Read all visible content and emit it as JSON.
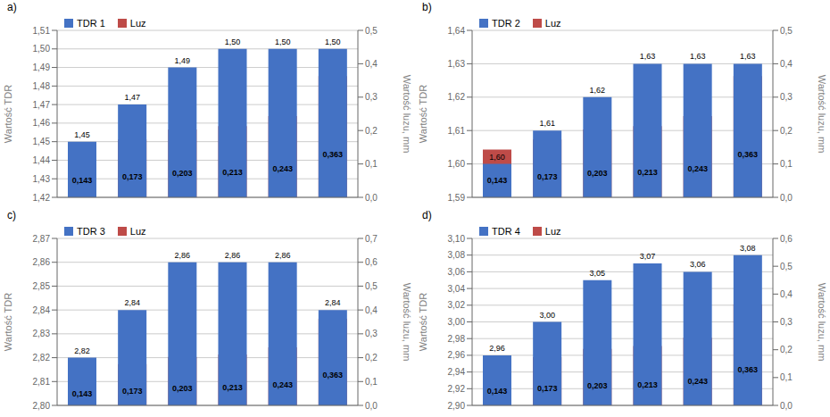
{
  "chart_data": [
    {
      "type": "bar",
      "title": "a)",
      "categories": [
        null,
        null,
        null,
        null,
        null,
        null
      ],
      "y_label": "Wartość TDR",
      "y2_label": "Wartość luzu, mm",
      "ylim": [
        1.42,
        1.51
      ],
      "yticks": [
        {
          "value": 1.42,
          "label": "1,42"
        },
        {
          "value": 1.43,
          "label": "1,43"
        },
        {
          "value": 1.44,
          "label": "1,44"
        },
        {
          "value": 1.45,
          "label": "1,45"
        },
        {
          "value": 1.46,
          "label": "1,46"
        },
        {
          "value": 1.47,
          "label": "1,47"
        },
        {
          "value": 1.48,
          "label": "1,48"
        },
        {
          "value": 1.49,
          "label": "1,49"
        },
        {
          "value": 1.5,
          "label": "1,50"
        },
        {
          "value": 1.51,
          "label": "1,51"
        }
      ],
      "y2lim": [
        0,
        0.5
      ],
      "y2ticks": [
        {
          "value": 0,
          "label": "0,0"
        },
        {
          "value": 0.1,
          "label": "0,1"
        },
        {
          "value": 0.2,
          "label": "0,2"
        },
        {
          "value": 0.3,
          "label": "0,3"
        },
        {
          "value": 0.4,
          "label": "0,4"
        },
        {
          "value": 0.5,
          "label": "0,5"
        }
      ],
      "grid": true,
      "legend": "upper left",
      "data_labels": true,
      "tick_labels": "y",
      "series": [
        {
          "name": "TDR 1",
          "color": "#4472C4",
          "values": [
            1.45,
            1.47,
            1.49,
            1.5,
            1.5,
            1.5
          ],
          "value_labels": [
            "1,45",
            "1,47",
            "1,49",
            "1,50",
            "1,50",
            "1,50"
          ]
        },
        {
          "name": "Luz",
          "color": "#BE4B48",
          "axis": "y2",
          "values": [
            0.143,
            0.173,
            0.203,
            0.213,
            0.243,
            0.363
          ],
          "value_labels": [
            "0,143",
            "0,173",
            "0,203",
            "0,213",
            "0,243",
            "0,363"
          ]
        }
      ]
    },
    {
      "type": "bar",
      "title": "b)",
      "categories": [
        null,
        null,
        null,
        null,
        null,
        null
      ],
      "y_label": "Wartość TDR",
      "y2_label": "Wartość luzu, mm",
      "ylim": [
        1.59,
        1.64
      ],
      "yticks": [
        {
          "value": 1.59,
          "label": "1,59"
        },
        {
          "value": 1.6,
          "label": "1,60"
        },
        {
          "value": 1.61,
          "label": "1,61"
        },
        {
          "value": 1.62,
          "label": "1,62"
        },
        {
          "value": 1.63,
          "label": "1,63"
        },
        {
          "value": 1.64,
          "label": "1,64"
        }
      ],
      "y2lim": [
        0,
        0.5
      ],
      "y2ticks": [
        {
          "value": 0,
          "label": "0,0"
        },
        {
          "value": 0.1,
          "label": "0,1"
        },
        {
          "value": 0.2,
          "label": "0,2"
        },
        {
          "value": 0.3,
          "label": "0,3"
        },
        {
          "value": 0.4,
          "label": "0,4"
        },
        {
          "value": 0.5,
          "label": "0,5"
        }
      ],
      "grid": true,
      "legend": "upper left",
      "data_labels": true,
      "tick_labels": "y",
      "series": [
        {
          "name": "TDR 2",
          "color": "#4472C4",
          "values": [
            1.6,
            1.61,
            1.62,
            1.63,
            1.63,
            1.63
          ],
          "value_labels": [
            "1,60",
            "1,61",
            "1,62",
            "1,63",
            "1,63",
            "1,63"
          ]
        },
        {
          "name": "Luz",
          "color": "#BE4B48",
          "axis": "y2",
          "values": [
            0.143,
            0.173,
            0.203,
            0.213,
            0.243,
            0.363
          ],
          "value_labels": [
            "0,143",
            "0,173",
            "0,203",
            "0,213",
            "0,243",
            "0,363"
          ]
        }
      ]
    },
    {
      "type": "bar",
      "title": "c)",
      "categories": [
        null,
        null,
        null,
        null,
        null,
        null
      ],
      "y_label": "Wartość TDR",
      "y2_label": "Wartość luzu, mm",
      "ylim": [
        2.8,
        2.87
      ],
      "yticks": [
        {
          "value": 2.8,
          "label": "2,80"
        },
        {
          "value": 2.81,
          "label": "2,81"
        },
        {
          "value": 2.82,
          "label": "2,82"
        },
        {
          "value": 2.83,
          "label": "2,83"
        },
        {
          "value": 2.84,
          "label": "2,84"
        },
        {
          "value": 2.85,
          "label": "2,85"
        },
        {
          "value": 2.86,
          "label": "2,86"
        },
        {
          "value": 2.87,
          "label": "2,87"
        }
      ],
      "y2lim": [
        0,
        0.7
      ],
      "y2ticks": [
        {
          "value": 0,
          "label": "0,0"
        },
        {
          "value": 0.1,
          "label": "0,1"
        },
        {
          "value": 0.2,
          "label": "0,2"
        },
        {
          "value": 0.3,
          "label": "0,3"
        },
        {
          "value": 0.4,
          "label": "0,4"
        },
        {
          "value": 0.5,
          "label": "0,5"
        },
        {
          "value": 0.6,
          "label": "0,6"
        },
        {
          "value": 0.7,
          "label": "0,7"
        }
      ],
      "grid": true,
      "legend": "upper left",
      "data_labels": true,
      "tick_labels": "y",
      "series": [
        {
          "name": "TDR 3",
          "color": "#4472C4",
          "values": [
            2.82,
            2.84,
            2.86,
            2.86,
            2.86,
            2.84
          ],
          "value_labels": [
            "2,82",
            "2,84",
            "2,86",
            "2,86",
            "2,86",
            "2,84"
          ]
        },
        {
          "name": "Luz",
          "color": "#BE4B48",
          "axis": "y2",
          "values": [
            0.143,
            0.173,
            0.203,
            0.213,
            0.243,
            0.363
          ],
          "value_labels": [
            "0,143",
            "0,173",
            "0,203",
            "0,213",
            "0,243",
            "0,363"
          ]
        }
      ]
    },
    {
      "type": "bar",
      "title": "d)",
      "categories": [
        null,
        null,
        null,
        null,
        null,
        null
      ],
      "y_label": "Wartość TDR",
      "y2_label": "Wartość luzu, mm",
      "ylim": [
        2.9,
        3.1
      ],
      "yticks": [
        {
          "value": 2.9,
          "label": "2,90"
        },
        {
          "value": 2.92,
          "label": "2,92"
        },
        {
          "value": 2.94,
          "label": "2,94"
        },
        {
          "value": 2.96,
          "label": "2,96"
        },
        {
          "value": 2.98,
          "label": "2,98"
        },
        {
          "value": 3.0,
          "label": "3,00"
        },
        {
          "value": 3.02,
          "label": "3,02"
        },
        {
          "value": 3.04,
          "label": "3,04"
        },
        {
          "value": 3.06,
          "label": "3,06"
        },
        {
          "value": 3.08,
          "label": "3,08"
        },
        {
          "value": 3.1,
          "label": "3,10"
        }
      ],
      "y2lim": [
        0,
        0.6
      ],
      "y2ticks": [
        {
          "value": 0,
          "label": "0,0"
        },
        {
          "value": 0.1,
          "label": "0,1"
        },
        {
          "value": 0.2,
          "label": "0,2"
        },
        {
          "value": 0.3,
          "label": "0,3"
        },
        {
          "value": 0.4,
          "label": "0,4"
        },
        {
          "value": 0.5,
          "label": "0,5"
        },
        {
          "value": 0.6,
          "label": "0,6"
        }
      ],
      "grid": true,
      "legend": "upper left",
      "data_labels": true,
      "tick_labels": "y",
      "series": [
        {
          "name": "TDR 4",
          "color": "#4472C4",
          "values": [
            2.96,
            3.0,
            3.05,
            3.07,
            3.06,
            3.08
          ],
          "value_labels": [
            "2,96",
            "3,00",
            "3,05",
            "3,07",
            "3,06",
            "3,08"
          ]
        },
        {
          "name": "Luz",
          "color": "#BE4B48",
          "axis": "y2",
          "values": [
            0.143,
            0.173,
            0.203,
            0.213,
            0.243,
            0.363
          ],
          "value_labels": [
            "0,143",
            "0,173",
            "0,203",
            "0,213",
            "0,243",
            "0,363"
          ]
        }
      ]
    }
  ]
}
